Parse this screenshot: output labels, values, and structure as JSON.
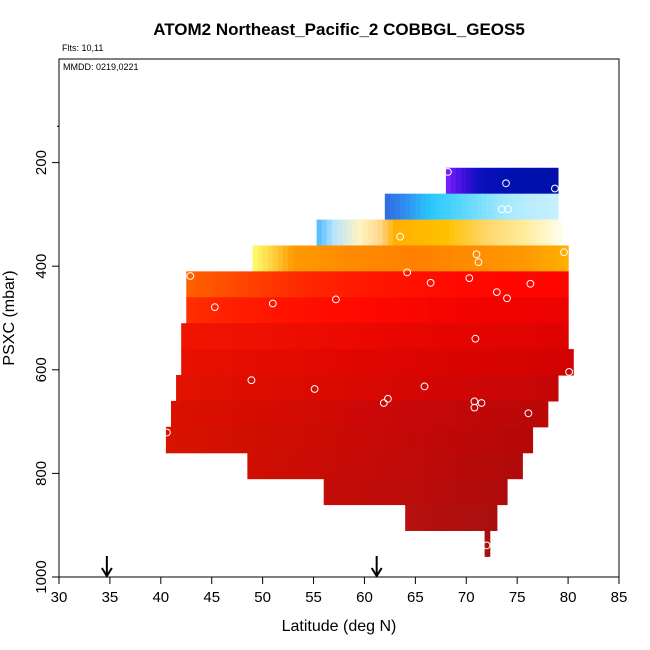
{
  "chart_data": {
    "type": "heatmap",
    "title": "ATOM2 Northeast_Pacific_2 COBBGL_GEOS5",
    "annotations": {
      "flights": "Flts: 10,11",
      "dates": "MMDD: 0219,0221"
    },
    "xlabel": "Latitude (deg N)",
    "ylabel": "PSXC (mbar)",
    "xlim": [
      30,
      85
    ],
    "ylim": [
      1000,
      0
    ],
    "x_ticks": [
      "30",
      "35",
      "40",
      "45",
      "50",
      "55",
      "60",
      "65",
      "70",
      "75",
      "80",
      "85"
    ],
    "y_ticks": [
      "200",
      "400",
      "600",
      "800",
      "1000"
    ],
    "grid": false,
    "colors": {
      "high": "#b01010",
      "mid": "#ff2000",
      "orange": "#ff9000",
      "pale": "#ffffd0",
      "cyan": "#30c0ff",
      "blue": "#0010b0",
      "violet": "#7a22ff"
    },
    "markers": {
      "arrow_latitudes": [
        34.7,
        61.2
      ]
    },
    "bands": [
      {
        "p_top": 210,
        "p_bot": 260,
        "lat_start": 68.0,
        "lat_end": 79.0,
        "stops": [
          [
            68,
            "#7a22ff"
          ],
          [
            69.5,
            "#4a10e0"
          ],
          [
            71,
            "#1010c0"
          ],
          [
            74,
            "#0010b0"
          ],
          [
            79,
            "#0010a8"
          ]
        ]
      },
      {
        "p_top": 260,
        "p_bot": 310,
        "lat_start": 62.0,
        "lat_end": 79.0,
        "stops": [
          [
            62,
            "#2f6be0"
          ],
          [
            64,
            "#2f8ef0"
          ],
          [
            66.5,
            "#28c8ff"
          ],
          [
            70,
            "#60d8ff"
          ],
          [
            73.5,
            "#a0e8ff"
          ],
          [
            76,
            "#b8ecff"
          ],
          [
            79,
            "#c8f0ff"
          ]
        ]
      },
      {
        "p_top": 310,
        "p_bot": 360,
        "lat_start": 55.3,
        "lat_end": 79.5,
        "stops": [
          [
            55.3,
            "#4ab8ff"
          ],
          [
            57,
            "#b8e4ff"
          ],
          [
            59.5,
            "#fff4c0"
          ],
          [
            61.5,
            "#ffd890"
          ],
          [
            63,
            "#ffb000"
          ],
          [
            68,
            "#ffc000"
          ],
          [
            72,
            "#ffd66a"
          ],
          [
            76,
            "#ffeea0"
          ],
          [
            79.5,
            "#fffff0"
          ]
        ]
      },
      {
        "p_top": 360,
        "p_bot": 410,
        "lat_start": 49.0,
        "lat_end": 80.0,
        "stops": [
          [
            49,
            "#ffff70"
          ],
          [
            51,
            "#ffd040"
          ],
          [
            53,
            "#ff9a00"
          ],
          [
            58,
            "#ff8c00"
          ],
          [
            65,
            "#ff8000"
          ],
          [
            72,
            "#ff9000"
          ],
          [
            76,
            "#ff9a00"
          ],
          [
            80,
            "#ffb000"
          ]
        ]
      },
      {
        "p_top": 410,
        "p_bot": 460,
        "lat_start": 42.5,
        "lat_end": 80.0,
        "stops": [
          [
            42.5,
            "#ff6000"
          ],
          [
            46,
            "#ff5000"
          ],
          [
            50,
            "#ff3a00"
          ],
          [
            55,
            "#ff2500"
          ],
          [
            60,
            "#ff1800"
          ],
          [
            65,
            "#ff1000"
          ],
          [
            70,
            "#ff0800"
          ],
          [
            80,
            "#ff0600"
          ]
        ]
      },
      {
        "p_top": 460,
        "p_bot": 510,
        "lat_start": 42.5,
        "lat_end": 80.0,
        "stops": [
          [
            42.5,
            "#ff3000"
          ],
          [
            46,
            "#ff2200"
          ],
          [
            52,
            "#ff1200"
          ],
          [
            60,
            "#ff0800"
          ],
          [
            70,
            "#f20400"
          ],
          [
            80,
            "#ec0300"
          ]
        ]
      },
      {
        "p_top": 510,
        "p_bot": 560,
        "lat_start": 42.0,
        "lat_end": 80.0,
        "stops": [
          [
            42,
            "#f01400"
          ],
          [
            50,
            "#ee1000"
          ],
          [
            60,
            "#ea0800"
          ],
          [
            70,
            "#e40400"
          ],
          [
            80,
            "#de0300"
          ]
        ]
      },
      {
        "p_top": 560,
        "p_bot": 610,
        "lat_start": 42.0,
        "lat_end": 80.5,
        "stops": [
          [
            42,
            "#e81000"
          ],
          [
            50,
            "#e40c00"
          ],
          [
            60,
            "#e00600"
          ],
          [
            70,
            "#d80400"
          ],
          [
            80.5,
            "#d20303"
          ]
        ]
      },
      {
        "p_top": 610,
        "p_bot": 660,
        "lat_start": 41.5,
        "lat_end": 79.0,
        "stops": [
          [
            41.5,
            "#e21200"
          ],
          [
            50,
            "#dc0e00"
          ],
          [
            60,
            "#d80800"
          ],
          [
            70,
            "#ce0606"
          ],
          [
            79,
            "#c40606"
          ]
        ]
      },
      {
        "p_top": 660,
        "p_bot": 710,
        "lat_start": 41.0,
        "lat_end": 78.0,
        "stops": [
          [
            41,
            "#da1000"
          ],
          [
            50,
            "#d40c00"
          ],
          [
            60,
            "#cc0808"
          ],
          [
            70,
            "#c00808"
          ],
          [
            78,
            "#b80808"
          ]
        ]
      },
      {
        "p_top": 710,
        "p_bot": 760,
        "lat_start": 40.5,
        "lat_end": 76.5,
        "stops": [
          [
            40.5,
            "#d81400"
          ],
          [
            50,
            "#d00e00"
          ],
          [
            60,
            "#c80a06"
          ],
          [
            70,
            "#bc0808"
          ],
          [
            76.5,
            "#b40808"
          ]
        ]
      },
      {
        "p_top": 760,
        "p_bot": 810,
        "lat_start": 48.5,
        "lat_end": 75.5,
        "stops": [
          [
            48.5,
            "#ce0e00"
          ],
          [
            56,
            "#c80c06"
          ],
          [
            64,
            "#c00a08"
          ],
          [
            70,
            "#b80a0a"
          ],
          [
            75.5,
            "#b00a0a"
          ]
        ]
      },
      {
        "p_top": 810,
        "p_bot": 860,
        "lat_start": 56.0,
        "lat_end": 74.0,
        "stops": [
          [
            56,
            "#c40c08"
          ],
          [
            62,
            "#be0c08"
          ],
          [
            68,
            "#b60c0c"
          ],
          [
            74,
            "#ae0c0c"
          ]
        ]
      },
      {
        "p_top": 860,
        "p_bot": 910,
        "lat_start": 64.0,
        "lat_end": 73.0,
        "stops": [
          [
            64,
            "#b81010"
          ],
          [
            68,
            "#b20e0e"
          ],
          [
            73,
            "#aa1010"
          ]
        ]
      },
      {
        "p_top": 910,
        "p_bot": 960,
        "lat_start": 71.8,
        "lat_end": 72.3,
        "stops": [
          [
            71.8,
            "#a80f0f"
          ],
          [
            72.3,
            "#a80f0f"
          ]
        ]
      }
    ],
    "points": [
      [
        68.2,
        218
      ],
      [
        73.9,
        240
      ],
      [
        78.7,
        250
      ],
      [
        73.5,
        290
      ],
      [
        74.1,
        290
      ],
      [
        63.5,
        343
      ],
      [
        79.6,
        373
      ],
      [
        71.0,
        377
      ],
      [
        71.2,
        392
      ],
      [
        42.9,
        419
      ],
      [
        64.2,
        412
      ],
      [
        70.3,
        423
      ],
      [
        66.5,
        432
      ],
      [
        76.3,
        434
      ],
      [
        73.0,
        450
      ],
      [
        74.0,
        462
      ],
      [
        57.2,
        464
      ],
      [
        51.0,
        472
      ],
      [
        45.3,
        479
      ],
      [
        70.9,
        540
      ],
      [
        80.1,
        604
      ],
      [
        48.9,
        620
      ],
      [
        65.9,
        632
      ],
      [
        55.1,
        637
      ],
      [
        62.3,
        656
      ],
      [
        61.9,
        664
      ],
      [
        70.8,
        661
      ],
      [
        71.5,
        664
      ],
      [
        70.8,
        673
      ],
      [
        76.1,
        684
      ],
      [
        40.6,
        721
      ],
      [
        72.0,
        939
      ]
    ]
  }
}
